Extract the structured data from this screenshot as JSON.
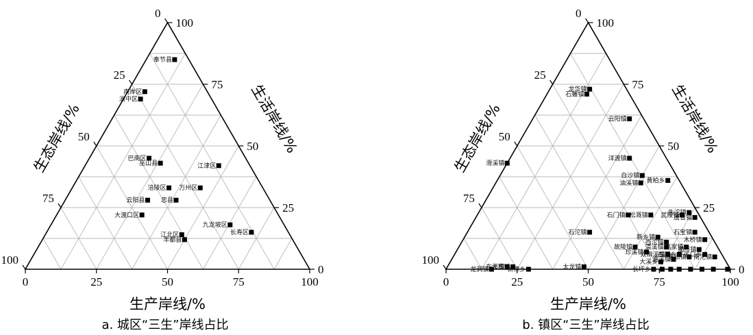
{
  "chart_data": [
    {
      "type": "scatter",
      "subtype": "ternary",
      "caption": "a. 城区“三生”岸线占比",
      "axes": {
        "bottom": {
          "title": "生产岸线/%",
          "ticks": [
            "0",
            "25",
            "50",
            "75",
            "100"
          ]
        },
        "left": {
          "title": "生态岸线/%",
          "ticks": [
            "0",
            "25",
            "50",
            "75",
            "100"
          ]
        },
        "right": {
          "title": "生活岸线/%",
          "ticks": [
            "0",
            "25",
            "50",
            "75",
            "100"
          ]
        }
      },
      "range": [
        0,
        100
      ],
      "grid": true,
      "points": [
        {
          "label": "奉节县",
          "production": 10,
          "living": 85,
          "ecology": 5
        },
        {
          "label": "南岸区",
          "production": 6,
          "living": 72,
          "ecology": 22
        },
        {
          "label": "渝中区",
          "production": 6,
          "living": 69,
          "ecology": 25
        },
        {
          "label": "巴南区",
          "production": 21,
          "living": 45,
          "ecology": 34
        },
        {
          "label": "巫山县",
          "production": 26,
          "living": 43,
          "ecology": 31
        },
        {
          "label": "江津区",
          "production": 47,
          "living": 42,
          "ecology": 11
        },
        {
          "label": "涪陵区",
          "production": 34,
          "living": 33,
          "ecology": 33
        },
        {
          "label": "万州区",
          "production": 45,
          "living": 33,
          "ecology": 22
        },
        {
          "label": "云阳县",
          "production": 29,
          "living": 28,
          "ecology": 43
        },
        {
          "label": "忠县",
          "production": 39,
          "living": 28,
          "ecology": 33
        },
        {
          "label": "大渡口区",
          "production": 30,
          "living": 22,
          "ecology": 48
        },
        {
          "label": "九龙坡区",
          "production": 63,
          "living": 18,
          "ecology": 19
        },
        {
          "label": "长寿区",
          "production": 72,
          "living": 15,
          "ecology": 13
        },
        {
          "label": "江北区",
          "production": 48,
          "living": 14,
          "ecology": 38
        },
        {
          "label": "丰都县",
          "production": 50,
          "living": 12,
          "ecology": 38
        }
      ]
    },
    {
      "type": "scatter",
      "subtype": "ternary",
      "caption": "b. 镇区“三生”岸线占比",
      "axes": {
        "bottom": {
          "title": "生产岸线/%",
          "ticks": [
            "0",
            "25",
            "50",
            "75",
            "100"
          ]
        },
        "left": {
          "title": "生态岸线/%",
          "ticks": [
            "0",
            "25",
            "50",
            "75",
            "100"
          ]
        },
        "right": {
          "title": "生活岸线/%",
          "ticks": [
            "0",
            "25",
            "50",
            "75",
            "100"
          ]
        }
      },
      "range": [
        0,
        100
      ],
      "grid": true,
      "points": [
        {
          "label": "龙华镇",
          "production": 14,
          "living": 73,
          "ecology": 13
        },
        {
          "label": "石蠖镇",
          "production": 14,
          "living": 71,
          "ecology": 15
        },
        {
          "label": "云阳镇",
          "production": 34,
          "living": 61,
          "ecology": 5
        },
        {
          "label": "洋渡镇",
          "production": 42,
          "living": 45,
          "ecology": 13
        },
        {
          "label": "滑溪镇",
          "production": 0,
          "living": 43,
          "ecology": 57
        },
        {
          "label": "白沙镇",
          "production": 50,
          "living": 38,
          "ecology": 12
        },
        {
          "label": "黄柏乡",
          "production": 60,
          "living": 36,
          "ecology": 4
        },
        {
          "label": "油溪镇",
          "production": 51,
          "living": 35,
          "ecology": 14
        },
        {
          "label": "朱沱镇",
          "production": 74,
          "living": 23,
          "ecology": 3
        },
        {
          "label": "石门镇",
          "production": 53,
          "living": 22,
          "ecology": 25
        },
        {
          "label": "松溉镇",
          "production": 61,
          "living": 22,
          "ecology": 17
        },
        {
          "label": "武陵镇",
          "production": 72,
          "living": 22,
          "ecology": 6
        },
        {
          "label": "唐普镇",
          "production": 77,
          "living": 21,
          "ecology": 2
        },
        {
          "label": "石沱镇",
          "production": 43,
          "living": 15,
          "ecology": 42
        },
        {
          "label": "石宝镇",
          "production": 80,
          "living": 15,
          "ecology": 5
        },
        {
          "label": "新乡镇",
          "production": 68,
          "living": 13,
          "ecology": 19
        },
        {
          "label": "木桥镇",
          "production": 85,
          "living": 12,
          "ecology": 3
        },
        {
          "label": "西沱镇",
          "production": 72,
          "living": 11,
          "ecology": 17
        },
        {
          "label": "高家镇",
          "production": 80,
          "living": 9,
          "ecology": 11
        },
        {
          "label": "故陵镇",
          "production": 62,
          "living": 9,
          "ecology": 29
        },
        {
          "label": "清溪镇",
          "production": 73,
          "living": 9,
          "ecology": 18
        },
        {
          "label": "蔺市镇",
          "production": 85,
          "living": 8,
          "ecology": 7
        },
        {
          "label": "珍溪镇",
          "production": 67,
          "living": 7,
          "ecology": 26
        },
        {
          "label": "双柳溪镇",
          "production": 75,
          "living": 6,
          "ecology": 19
        },
        {
          "label": "曲尺乡",
          "production": 79,
          "living": 6,
          "ecology": 15
        },
        {
          "label": "洛碛镇",
          "production": 83,
          "living": 5,
          "ecology": 12
        },
        {
          "label": "平溪口乡",
          "production": 88,
          "living": 6,
          "ecology": 6
        },
        {
          "label": "南沱镇",
          "production": 92,
          "living": 5,
          "ecology": 3
        },
        {
          "label": "渔溪镇",
          "production": 78,
          "living": 4,
          "ecology": 18
        },
        {
          "label": "大溪乡",
          "production": 74,
          "living": 3,
          "ecology": 23
        },
        {
          "label": "长坪乡",
          "production": 73,
          "living": 0,
          "ecology": 27
        },
        {
          "label": "太龙镇",
          "production": 48,
          "living": 1,
          "ecology": 51
        },
        {
          "label": "东溪镇",
          "production": 21,
          "living": 1,
          "ecology": 78
        },
        {
          "label": "大周镇",
          "production": 23,
          "living": 1,
          "ecology": 76
        },
        {
          "label": "新津乡",
          "production": 29,
          "living": 0,
          "ecology": 71
        },
        {
          "label": "龙洞镇",
          "production": 16,
          "living": 0,
          "ecology": 84
        },
        {
          "label": "",
          "production": 76,
          "living": 0,
          "ecology": 24
        },
        {
          "label": "",
          "production": 79,
          "living": 0,
          "ecology": 21
        },
        {
          "label": "",
          "production": 82,
          "living": 0,
          "ecology": 18
        },
        {
          "label": "",
          "production": 86,
          "living": 0,
          "ecology": 14
        },
        {
          "label": "",
          "production": 90,
          "living": 0,
          "ecology": 10
        },
        {
          "label": "",
          "production": 94,
          "living": 0,
          "ecology": 6
        },
        {
          "label": "",
          "production": 99,
          "living": 0,
          "ecology": 1
        }
      ]
    }
  ]
}
